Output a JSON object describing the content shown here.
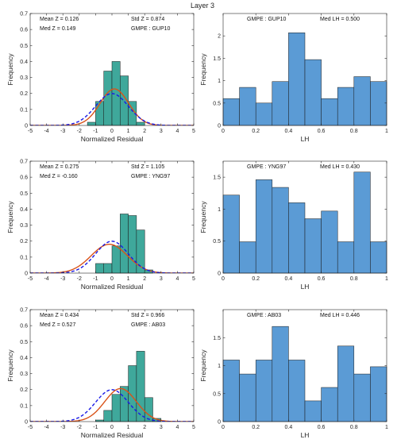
{
  "figure_title": "Layer 3",
  "chart_data": [
    {
      "type": "bar",
      "panel": "residual",
      "xlabel": "Normalized Residual",
      "ylabel": "Frequency",
      "xlim": [
        -5,
        5
      ],
      "ylim": [
        0,
        0.7
      ],
      "xticks": [
        "-5",
        "-4",
        "-3",
        "-2",
        "-1",
        "0",
        "1",
        "2",
        "3",
        "4",
        "5"
      ],
      "yticks": [
        "0",
        "0.1",
        "0.2",
        "0.3",
        "0.4",
        "0.5",
        "0.6",
        "0.7"
      ],
      "bin_edges": [
        -5,
        -4.5,
        -4,
        -3.5,
        -3,
        -2.5,
        -2,
        -1.5,
        -1,
        -0.5,
        0,
        0.5,
        1,
        1.5,
        2,
        2.5,
        3,
        3.5,
        4,
        4.5,
        5
      ],
      "values": [
        0,
        0,
        0,
        0,
        0,
        0,
        0,
        0.02,
        0.15,
        0.34,
        0.4,
        0.31,
        0.15,
        0.02,
        0,
        0,
        0,
        0,
        0,
        0
      ],
      "bar_color": "#3fa89b",
      "fit_curves": [
        {
          "style": "solid",
          "color": "#d95319",
          "mean": 0.149,
          "std": 0.874
        },
        {
          "style": "dashed",
          "color": "#1a1ae6",
          "mean": 0,
          "std": 1
        }
      ],
      "annotations": [
        "Mean Z = 0.126",
        "Med Z = 0.149",
        "Std Z  = 0.874",
        "GMPE : GUP10"
      ]
    },
    {
      "type": "bar",
      "panel": "lh",
      "xlabel": "LH",
      "ylabel": "Frequency",
      "xlim": [
        0,
        1
      ],
      "ylim": [
        0,
        2.5
      ],
      "xticks": [
        "0",
        "0.2",
        "0.4",
        "0.6",
        "0.8",
        "1"
      ],
      "yticks": [
        "0",
        "0.5",
        "1",
        "1.5",
        "2"
      ],
      "bin_edges": [
        0,
        0.1,
        0.2,
        0.3,
        0.4,
        0.5,
        0.6,
        0.7,
        0.8,
        0.9,
        1.0
      ],
      "values": [
        0.6,
        0.85,
        0.5,
        0.98,
        2.07,
        1.47,
        0.6,
        0.85,
        1.09,
        0.98
      ],
      "bar_color": "#5b9bd5",
      "annotations": [
        "GMPE : GUP10",
        "Med LH = 0.500"
      ]
    },
    {
      "type": "bar",
      "panel": "residual",
      "xlabel": "Normalized Residual",
      "ylabel": "Frequency",
      "xlim": [
        -5,
        5
      ],
      "ylim": [
        0,
        0.7
      ],
      "xticks": [
        "-5",
        "-4",
        "-3",
        "-2",
        "-1",
        "0",
        "1",
        "2",
        "3",
        "4",
        "5"
      ],
      "yticks": [
        "0",
        "0.1",
        "0.2",
        "0.3",
        "0.4",
        "0.5",
        "0.6",
        "0.7"
      ],
      "bin_edges": [
        -5,
        -4.5,
        -4,
        -3.5,
        -3,
        -2.5,
        -2,
        -1.5,
        -1,
        -0.5,
        0,
        0.5,
        1,
        1.5,
        2,
        2.5,
        3,
        3.5,
        4,
        4.5,
        5
      ],
      "values": [
        0,
        0,
        0,
        0,
        0,
        0,
        0,
        0,
        0.06,
        0.06,
        0.17,
        0.37,
        0.36,
        0.27,
        0.02,
        0,
        0,
        0,
        0,
        0
      ],
      "bar_color": "#3fa89b",
      "fit_curves": [
        {
          "style": "solid",
          "color": "#d95319",
          "mean": -0.16,
          "std": 1.105
        },
        {
          "style": "dashed",
          "color": "#1a1ae6",
          "mean": 0,
          "std": 1
        }
      ],
      "annotations": [
        "Mean Z = 0.275",
        "Med Z = -0.160",
        "Std Z  = 1.105",
        "GMPE : YNG97"
      ]
    },
    {
      "type": "bar",
      "panel": "lh",
      "xlabel": "LH",
      "ylabel": "Frequency",
      "xlim": [
        0,
        1
      ],
      "ylim": [
        0,
        1.75
      ],
      "xticks": [
        "0",
        "0.2",
        "0.4",
        "0.6",
        "0.8",
        "1"
      ],
      "yticks": [
        "0",
        "0.5",
        "1",
        "1.5"
      ],
      "bin_edges": [
        0,
        0.1,
        0.2,
        0.3,
        0.4,
        0.5,
        0.6,
        0.7,
        0.8,
        0.9,
        1.0
      ],
      "values": [
        1.22,
        0.49,
        1.46,
        1.34,
        1.1,
        0.85,
        0.97,
        0.49,
        1.58,
        0.49
      ],
      "bar_color": "#5b9bd5",
      "annotations": [
        "GMPE : YNG97",
        "Med LH = 0.430"
      ]
    },
    {
      "type": "bar",
      "panel": "residual",
      "xlabel": "Normalized Residual",
      "ylabel": "Frequency",
      "xlim": [
        -5,
        5
      ],
      "ylim": [
        0,
        0.7
      ],
      "xticks": [
        "-5",
        "-4",
        "-3",
        "-2",
        "-1",
        "0",
        "1",
        "2",
        "3",
        "4",
        "5"
      ],
      "yticks": [
        "0",
        "0.1",
        "0.2",
        "0.3",
        "0.4",
        "0.5",
        "0.6",
        "0.7"
      ],
      "bin_edges": [
        -5,
        -4.5,
        -4,
        -3.5,
        -3,
        -2.5,
        -2,
        -1.5,
        -1,
        -0.5,
        0,
        0.5,
        1,
        1.5,
        2,
        2.5,
        3,
        3.5,
        4,
        4.5,
        5
      ],
      "values": [
        0,
        0,
        0,
        0,
        0,
        0,
        0,
        0,
        0.01,
        0.07,
        0.17,
        0.22,
        0.35,
        0.44,
        0.15,
        0.02,
        0,
        0,
        0,
        0
      ],
      "bar_color": "#3fa89b",
      "fit_curves": [
        {
          "style": "solid",
          "color": "#d95319",
          "mean": 0.527,
          "std": 0.966
        },
        {
          "style": "dashed",
          "color": "#1a1ae6",
          "mean": 0,
          "std": 1
        }
      ],
      "annotations": [
        "Mean Z = 0.434",
        "Med Z = 0.527",
        "Std Z  = 0.966",
        "GMPE : AB03"
      ]
    },
    {
      "type": "bar",
      "panel": "lh",
      "xlabel": "LH",
      "ylabel": "Frequency",
      "xlim": [
        0,
        1
      ],
      "ylim": [
        0,
        2.0
      ],
      "xticks": [
        "0",
        "0.2",
        "0.4",
        "0.6",
        "0.8",
        "1"
      ],
      "yticks": [
        "0",
        "0.5",
        "1",
        "1.5"
      ],
      "bin_edges": [
        0,
        0.1,
        0.2,
        0.3,
        0.4,
        0.5,
        0.6,
        0.7,
        0.8,
        0.9,
        1.0
      ],
      "values": [
        1.1,
        0.85,
        1.1,
        1.7,
        1.1,
        0.37,
        0.61,
        1.35,
        0.85,
        0.98
      ],
      "bar_color": "#5b9bd5",
      "annotations": [
        "GMPE : AB03",
        "Med LH = 0.446"
      ]
    }
  ]
}
